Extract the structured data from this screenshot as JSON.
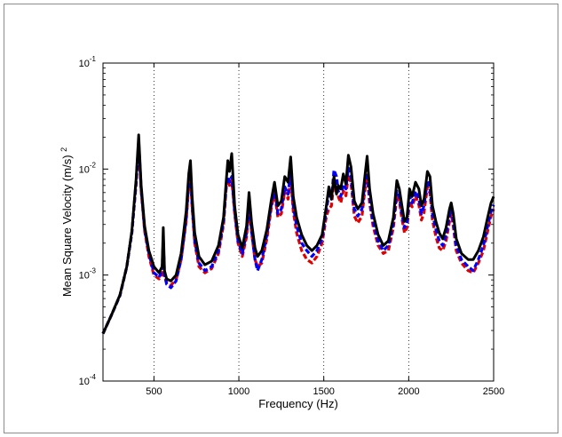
{
  "chart_data": {
    "type": "line",
    "title": "",
    "xlabel": "Frequency (Hz)",
    "ylabel": "Mean Square Velocity (m/s)",
    "ylabel_superscript": "2",
    "x_scale": "linear",
    "y_scale": "log",
    "xlim": [
      200,
      2500
    ],
    "ylim": [
      0.0001,
      0.1
    ],
    "x_ticks": [
      500,
      1000,
      1500,
      2000,
      2500
    ],
    "x_tick_labels": [
      "500",
      "1000",
      "1500",
      "2000",
      "2500"
    ],
    "y_ticks": [
      0.0001,
      0.001,
      0.01,
      0.1
    ],
    "y_tick_labels": [
      {
        "base": "10",
        "exp": "-4"
      },
      {
        "base": "10",
        "exp": "-3"
      },
      {
        "base": "10",
        "exp": "-2"
      },
      {
        "base": "10",
        "exp": "-1"
      }
    ],
    "grid": "vertical dotted at x ticks",
    "legend": "none",
    "series": [
      {
        "color": "#000000",
        "style": "solid",
        "x": [
          200,
          250,
          300,
          340,
          370,
          395,
          410,
          425,
          445,
          470,
          500,
          530,
          548,
          555,
          562,
          575,
          600,
          630,
          660,
          690,
          705,
          715,
          725,
          740,
          765,
          800,
          840,
          880,
          910,
          925,
          935,
          945,
          958,
          975,
          995,
          1020,
          1045,
          1060,
          1075,
          1095,
          1110,
          1135,
          1165,
          1190,
          1210,
          1230,
          1250,
          1270,
          1290,
          1305,
          1320,
          1340,
          1370,
          1400,
          1430,
          1460,
          1490,
          1515,
          1530,
          1545,
          1560,
          1575,
          1585,
          1600,
          1615,
          1630,
          1645,
          1660,
          1680,
          1700,
          1725,
          1740,
          1755,
          1770,
          1790,
          1820,
          1850,
          1880,
          1910,
          1930,
          1945,
          1960,
          1975,
          1990,
          2005,
          2020,
          2040,
          2060,
          2075,
          2090,
          2110,
          2125,
          2140,
          2160,
          2180,
          2200,
          2220,
          2240,
          2250,
          2262,
          2280,
          2310,
          2350,
          2380,
          2410,
          2440,
          2465,
          2485,
          2500
        ],
        "values": [
          0.00028,
          0.00042,
          0.00065,
          0.0012,
          0.0026,
          0.008,
          0.021,
          0.007,
          0.0029,
          0.0017,
          0.0012,
          0.00105,
          0.0012,
          0.0028,
          0.0011,
          0.00092,
          0.00088,
          0.001,
          0.0016,
          0.004,
          0.009,
          0.012,
          0.0055,
          0.0025,
          0.0015,
          0.00125,
          0.00135,
          0.0019,
          0.0035,
          0.0075,
          0.012,
          0.0095,
          0.014,
          0.0045,
          0.0024,
          0.0018,
          0.0029,
          0.006,
          0.0031,
          0.0018,
          0.0015,
          0.0017,
          0.0027,
          0.005,
          0.0075,
          0.0045,
          0.005,
          0.0085,
          0.0075,
          0.013,
          0.0055,
          0.0035,
          0.0024,
          0.0019,
          0.0017,
          0.0019,
          0.0024,
          0.0045,
          0.0068,
          0.0052,
          0.0085,
          0.0058,
          0.007,
          0.0065,
          0.009,
          0.0072,
          0.0135,
          0.0105,
          0.005,
          0.0042,
          0.0048,
          0.008,
          0.0132,
          0.0065,
          0.0038,
          0.0024,
          0.0019,
          0.0021,
          0.0035,
          0.0078,
          0.0065,
          0.0045,
          0.0032,
          0.0035,
          0.0065,
          0.0055,
          0.0075,
          0.0065,
          0.0045,
          0.0052,
          0.0095,
          0.0085,
          0.0045,
          0.0032,
          0.0025,
          0.0022,
          0.0028,
          0.0042,
          0.0048,
          0.0038,
          0.0022,
          0.0016,
          0.0014,
          0.0014,
          0.0017,
          0.0023,
          0.0035,
          0.0048,
          0.0055
        ]
      },
      {
        "color": "#0000ff",
        "style": "dashed",
        "x": [
          200,
          250,
          300,
          340,
          370,
          395,
          410,
          425,
          445,
          470,
          500,
          530,
          548,
          555,
          562,
          575,
          600,
          630,
          660,
          690,
          705,
          715,
          725,
          740,
          765,
          800,
          840,
          880,
          910,
          925,
          935,
          945,
          958,
          975,
          995,
          1020,
          1045,
          1060,
          1075,
          1095,
          1110,
          1135,
          1165,
          1190,
          1210,
          1230,
          1250,
          1270,
          1290,
          1305,
          1320,
          1340,
          1370,
          1400,
          1430,
          1460,
          1490,
          1515,
          1530,
          1545,
          1560,
          1575,
          1585,
          1600,
          1615,
          1630,
          1645,
          1660,
          1680,
          1700,
          1725,
          1740,
          1755,
          1770,
          1790,
          1820,
          1850,
          1880,
          1910,
          1930,
          1945,
          1960,
          1975,
          1990,
          2005,
          2020,
          2040,
          2060,
          2075,
          2090,
          2110,
          2125,
          2140,
          2160,
          2180,
          2200,
          2220,
          2240,
          2250,
          2262,
          2280,
          2310,
          2350,
          2380,
          2410,
          2440,
          2465,
          2485,
          2500
        ],
        "values": [
          0.00028,
          0.00042,
          0.00064,
          0.0012,
          0.0025,
          0.0075,
          0.018,
          0.0065,
          0.0027,
          0.0016,
          0.00105,
          0.00095,
          0.0011,
          0.0022,
          0.001,
          0.00082,
          0.00076,
          0.00088,
          0.0014,
          0.0034,
          0.0075,
          0.0098,
          0.0046,
          0.0021,
          0.0013,
          0.0011,
          0.0012,
          0.0017,
          0.0032,
          0.0068,
          0.0085,
          0.0075,
          0.0085,
          0.004,
          0.0021,
          0.0016,
          0.0025,
          0.0048,
          0.0026,
          0.0014,
          0.0011,
          0.0014,
          0.0024,
          0.0045,
          0.0065,
          0.0038,
          0.0042,
          0.0068,
          0.0058,
          0.0095,
          0.0045,
          0.0029,
          0.002,
          0.0017,
          0.0015,
          0.0017,
          0.0022,
          0.0041,
          0.0058,
          0.0052,
          0.0098,
          0.0085,
          0.0062,
          0.0055,
          0.0072,
          0.0065,
          0.0102,
          0.0085,
          0.0042,
          0.0036,
          0.0042,
          0.0068,
          0.01,
          0.0055,
          0.0032,
          0.0021,
          0.0017,
          0.0019,
          0.0031,
          0.0062,
          0.0055,
          0.0038,
          0.0028,
          0.0031,
          0.0055,
          0.0048,
          0.0062,
          0.0052,
          0.0038,
          0.0045,
          0.0078,
          0.0068,
          0.0038,
          0.0027,
          0.0021,
          0.0019,
          0.0024,
          0.0036,
          0.0042,
          0.0033,
          0.0019,
          0.0014,
          0.0012,
          0.0011,
          0.0014,
          0.0019,
          0.0029,
          0.004,
          0.0046
        ]
      },
      {
        "color": "#e00000",
        "style": "dashed",
        "x": [
          200,
          250,
          300,
          340,
          370,
          395,
          410,
          425,
          445,
          470,
          500,
          530,
          548,
          555,
          562,
          575,
          600,
          630,
          660,
          690,
          705,
          715,
          725,
          740,
          765,
          800,
          840,
          880,
          910,
          925,
          935,
          945,
          958,
          975,
          995,
          1020,
          1045,
          1060,
          1075,
          1095,
          1110,
          1135,
          1165,
          1190,
          1210,
          1230,
          1250,
          1270,
          1290,
          1305,
          1320,
          1340,
          1370,
          1400,
          1430,
          1460,
          1490,
          1515,
          1530,
          1545,
          1560,
          1575,
          1585,
          1600,
          1615,
          1630,
          1645,
          1660,
          1680,
          1700,
          1725,
          1740,
          1755,
          1770,
          1790,
          1820,
          1850,
          1880,
          1910,
          1930,
          1945,
          1960,
          1975,
          1990,
          2005,
          2020,
          2040,
          2060,
          2075,
          2090,
          2110,
          2125,
          2140,
          2160,
          2180,
          2200,
          2220,
          2240,
          2250,
          2262,
          2280,
          2310,
          2350,
          2380,
          2410,
          2440,
          2465,
          2485,
          2500
        ],
        "values": [
          0.00028,
          0.00042,
          0.00064,
          0.0012,
          0.0025,
          0.0072,
          0.017,
          0.0062,
          0.0026,
          0.0015,
          0.001,
          0.00092,
          0.001,
          0.0019,
          0.00098,
          0.00085,
          0.0008,
          0.0009,
          0.0014,
          0.0032,
          0.007,
          0.009,
          0.0043,
          0.002,
          0.0012,
          0.00105,
          0.00115,
          0.0016,
          0.003,
          0.0065,
          0.008,
          0.007,
          0.008,
          0.0038,
          0.002,
          0.0015,
          0.0023,
          0.0044,
          0.0025,
          0.0014,
          0.0012,
          0.0013,
          0.0022,
          0.0042,
          0.006,
          0.0035,
          0.0038,
          0.0062,
          0.0052,
          0.0085,
          0.004,
          0.0025,
          0.0017,
          0.0014,
          0.0013,
          0.0015,
          0.002,
          0.0036,
          0.0042,
          0.0045,
          0.0075,
          0.0065,
          0.0055,
          0.0048,
          0.0062,
          0.0056,
          0.0088,
          0.0075,
          0.0036,
          0.0031,
          0.0036,
          0.006,
          0.0088,
          0.0048,
          0.0029,
          0.0019,
          0.0016,
          0.0017,
          0.0028,
          0.0056,
          0.005,
          0.0034,
          0.0025,
          0.0028,
          0.005,
          0.0044,
          0.0056,
          0.0046,
          0.0033,
          0.0039,
          0.0068,
          0.0059,
          0.0033,
          0.0023,
          0.0018,
          0.0017,
          0.0021,
          0.0032,
          0.0038,
          0.0029,
          0.0017,
          0.0013,
          0.0011,
          0.00105,
          0.0013,
          0.0017,
          0.0026,
          0.0036,
          0.0042
        ]
      }
    ]
  }
}
